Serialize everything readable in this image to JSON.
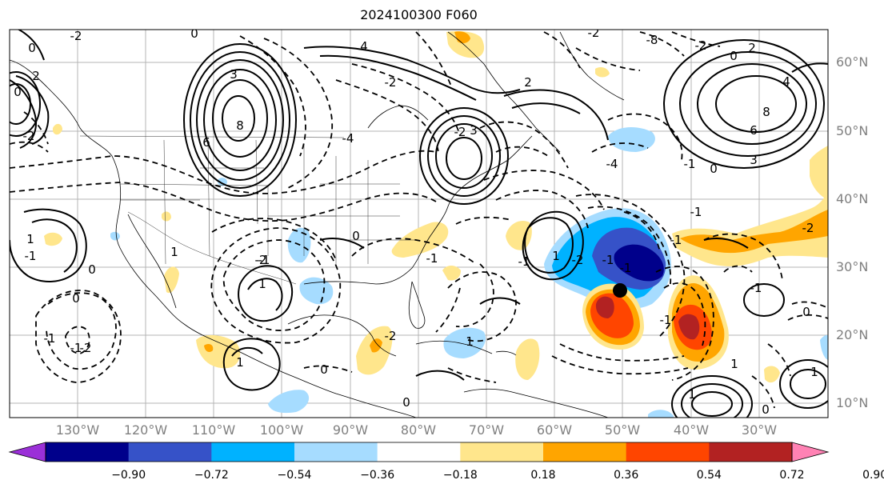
{
  "title": "2024100300 F060",
  "map": {
    "lat_labels": [
      "60°N",
      "50°N",
      "40°N",
      "30°N",
      "20°N",
      "10°N"
    ],
    "lon_labels": [
      "130°W",
      "120°W",
      "110°W",
      "100°W",
      "90°W",
      "80°W",
      "70°W",
      "60°W",
      "50°W",
      "40°W",
      "30°W"
    ],
    "contour_labels": [
      "0",
      "-2",
      "3",
      "8",
      "6",
      "4",
      "-4",
      "-2",
      "3",
      "-2",
      "2",
      "-2",
      "-4",
      "-8",
      "-2",
      "0",
      "2",
      "4",
      "8",
      "6",
      "3",
      "-1",
      "0",
      "1",
      "-1",
      "-2",
      "1",
      "-1",
      "-2",
      "1",
      "0",
      "-1",
      "0",
      "-2",
      "-1",
      "0",
      "1",
      "-1",
      "0",
      "-1",
      "-2",
      "1",
      "0",
      "1",
      "-1",
      "-2",
      "-1",
      "0",
      "1",
      "1",
      "0",
      "-1",
      "-1",
      "1",
      "-1",
      "0",
      "2",
      "-1",
      "-2",
      "0"
    ],
    "marker": "storm-center-dot",
    "land_color": "#ffffff",
    "line_color": "#000000",
    "grid_color": "#b0b0b0"
  },
  "colorbar": {
    "ticks": [
      "−0.90",
      "−0.72",
      "−0.54",
      "−0.36",
      "−0.18",
      "0.18",
      "0.36",
      "0.54",
      "0.72",
      "0.90"
    ],
    "colors": [
      "#9b30d8",
      "#00008b",
      "#3652c8",
      "#00b2ff",
      "#a6dcff",
      "#ffffff",
      "#ffe68c",
      "#ffa500",
      "#ff4500",
      "#b22222",
      "#ff82b4"
    ]
  }
}
